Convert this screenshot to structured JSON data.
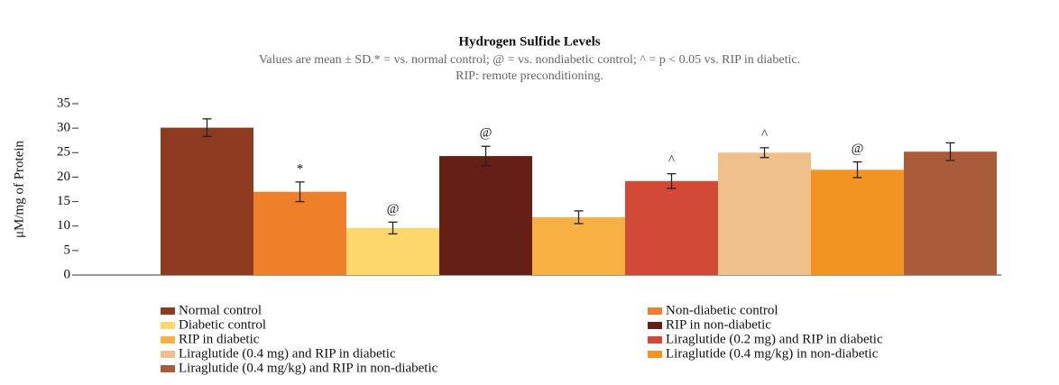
{
  "chart_data": {
    "type": "bar",
    "title": "Hydrogen Sulfide Levels",
    "subtitle": [
      "Values are mean ± SD.* = vs. normal control; @ = vs. nondiabetic control; ^ = p < 0.05 vs. RIP in diabetic.",
      "RIP: remote preconditioning."
    ],
    "y_label": "μM/mg of Protein",
    "ylim": [
      0,
      35
    ],
    "yticks": [
      0,
      5,
      10,
      15,
      20,
      25,
      30,
      35
    ],
    "series": [
      {
        "name": "Normal control",
        "color": "#8e3a1f",
        "values": [
          30.1
        ],
        "errors": [
          1.8
        ]
      },
      {
        "name": "Non-diabetic control",
        "color": "#f07f29",
        "values": [
          17
        ],
        "errors": [
          2
        ],
        "annotation": "*"
      },
      {
        "name": "Diabetic control",
        "color": "#fdd76a",
        "values": [
          9.6
        ],
        "errors": [
          1.2
        ],
        "annotation": "@"
      },
      {
        "name": "RIP in non-diabetic",
        "color": "#661f15",
        "values": [
          24.3
        ],
        "errors": [
          2
        ],
        "annotation": "@"
      },
      {
        "name": "RIP in diabetic",
        "color": "#f8b040",
        "values": [
          11.8
        ],
        "errors": [
          1.3
        ]
      },
      {
        "name": "Liraglutide (0.2 mg) and RIP in diabetic",
        "color": "#d24a37",
        "values": [
          19.2
        ],
        "errors": [
          1.5
        ],
        "annotation": "^"
      },
      {
        "name": "Liraglutide (0.4 mg) and RIP in diabetic",
        "color": "#f0c08a",
        "values": [
          25
        ],
        "errors": [
          1
        ],
        "annotation": "^"
      },
      {
        "name": "Liraglutide (0.4 mg/kg) in non-diabetic",
        "color": "#f39422",
        "values": [
          21.5
        ],
        "errors": [
          1.6
        ],
        "annotation": "@"
      },
      {
        "name": "Liraglutide (0.4 mg/kg) and RIP in non-diabetic",
        "color": "#a95b3a",
        "values": [
          25.2
        ],
        "errors": [
          1.8
        ]
      }
    ]
  }
}
